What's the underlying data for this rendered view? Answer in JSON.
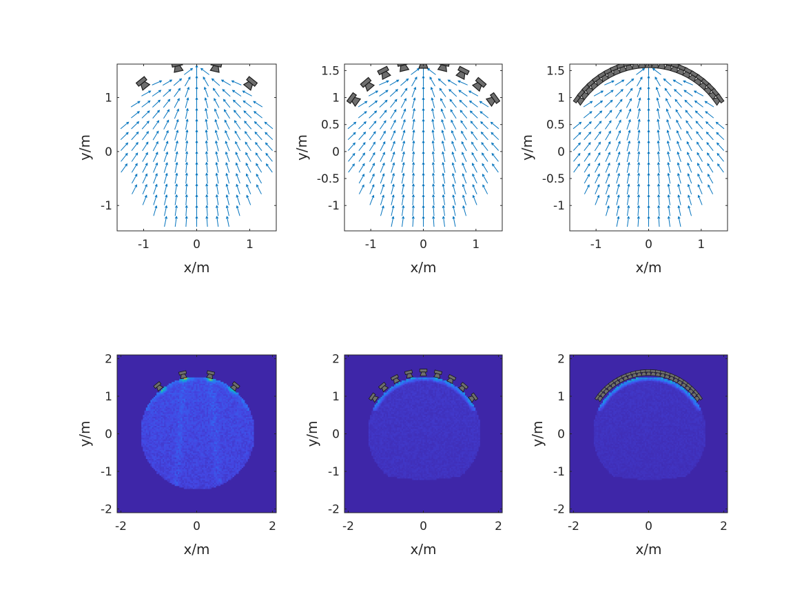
{
  "chart_data": [
    {
      "type": "quiver",
      "xlabel": "x/m",
      "ylabel": "y/m",
      "xlim": [
        -1.5,
        1.5
      ],
      "ylim": [
        -1.47,
        1.62
      ],
      "xticks": [
        -1,
        0,
        1
      ],
      "yticks": [
        -1,
        0,
        1
      ],
      "grid": false,
      "vector_color": "#0072bd",
      "vector_field": {
        "grid_spacing": 0.2,
        "region_radius": 1.5,
        "direction": "toward loudspeaker array"
      },
      "loudspeakers": {
        "count": 4,
        "radius": 1.6,
        "span_deg": 38.7,
        "color": "#6e6e6e"
      }
    },
    {
      "type": "quiver",
      "xlabel": "x/m",
      "ylabel": "y/m",
      "xlim": [
        -1.5,
        1.5
      ],
      "ylim": [
        -1.47,
        1.62
      ],
      "xticks": [
        -1,
        0,
        1
      ],
      "yticks": [
        -1,
        -0.5,
        0,
        0.5,
        1,
        1.5
      ],
      "grid": false,
      "vector_color": "#0072bd",
      "vector_field": {
        "grid_spacing": 0.2,
        "region_radius": 1.5,
        "direction": "toward loudspeaker array"
      },
      "loudspeakers": {
        "count": 9,
        "radius": 1.62,
        "span_deg": 54,
        "color": "#6e6e6e"
      }
    },
    {
      "type": "quiver",
      "xlabel": "x/m",
      "ylabel": "y/m",
      "xlim": [
        -1.5,
        1.5
      ],
      "ylim": [
        -1.47,
        1.62
      ],
      "xticks": [
        -1,
        0,
        1
      ],
      "yticks": [
        -1,
        -0.5,
        0,
        0.5,
        1,
        1.5
      ],
      "grid": false,
      "vector_color": "#0072bd",
      "vector_field": {
        "grid_spacing": 0.2,
        "region_radius": 1.5,
        "direction": "toward loudspeaker array"
      },
      "loudspeakers": {
        "count": 25,
        "radius": 1.62,
        "span_deg": 54,
        "color": "#6e6e6e"
      }
    },
    {
      "type": "heatmap",
      "xlabel": "x/m",
      "ylabel": "y/m",
      "xlim": [
        -2.1,
        2.1
      ],
      "ylim": [
        -2.1,
        2.1
      ],
      "xticks": [
        -2,
        0,
        2
      ],
      "yticks": [
        -2,
        -1,
        0,
        1,
        2
      ],
      "colormap": "parula",
      "region_radius": 1.5,
      "loudspeakers": {
        "count": 4,
        "radius": 1.6,
        "span_deg": 38.7,
        "color": "#6e6e6e"
      }
    },
    {
      "type": "heatmap",
      "xlabel": "x/m",
      "ylabel": "y/m",
      "xlim": [
        -2.1,
        2.1
      ],
      "ylim": [
        -2.1,
        2.1
      ],
      "xticks": [
        -2,
        0,
        2
      ],
      "yticks": [
        -2,
        -1,
        0,
        1,
        2
      ],
      "colormap": "parula",
      "region_radius": 1.5,
      "loudspeakers": {
        "count": 9,
        "radius": 1.62,
        "span_deg": 54,
        "color": "#6e6e6e"
      }
    },
    {
      "type": "heatmap",
      "xlabel": "x/m",
      "ylabel": "y/m",
      "xlim": [
        -2.1,
        2.1
      ],
      "ylim": [
        -2.1,
        2.1
      ],
      "xticks": [
        -2,
        0,
        2
      ],
      "yticks": [
        -2,
        -1,
        0,
        1,
        2
      ],
      "colormap": "parula",
      "region_radius": 1.5,
      "loudspeakers": {
        "count": 25,
        "radius": 1.62,
        "span_deg": 54,
        "color": "#6e6e6e"
      }
    }
  ]
}
